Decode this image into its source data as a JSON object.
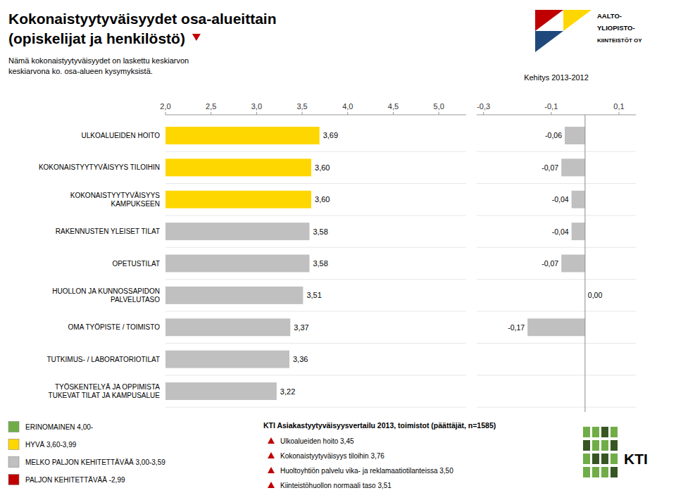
{
  "chart_data": [
    {
      "type": "bar",
      "orientation": "horizontal",
      "title": [
        "Kokonaistyytyväisyydet osa-alueittain",
        "(opiskelijat ja henkilöstö)"
      ],
      "subtitle": [
        "Nämä kokonaistyytyväisyydet on laskettu keskiarvon",
        "keskiarvona ko. osa-alueen kysymyksistä."
      ],
      "categories": [
        "ULKOALUEIDEN HOITO",
        "KOKONAISTYYTYVÄISYYS TILOIHIN",
        "KOKONAISTYYTYVÄISYYS\nKAMPUKSEEN",
        "RAKENNUSTEN YLEISET TILAT",
        "OPETUSTILAT",
        "HUOLLON JA KUNNOSSAPIDON\nPALVELUTASO",
        "OMA TYÖPISTE / TOIMISTO",
        "TUTKIMUS- / LABORATORIOTILAT",
        "TYÖSKENTELYÄ JA OPPIMISTA\nTUKEVAT TILAT JA KAMPUSALUE"
      ],
      "values": [
        3.69,
        3.6,
        3.6,
        3.58,
        3.58,
        3.51,
        3.37,
        3.36,
        3.22
      ],
      "value_labels": [
        "3,69",
        "3,60",
        "3,60",
        "3,58",
        "3,58",
        "3,51",
        "3,37",
        "3,36",
        "3,22"
      ],
      "data_labels": true,
      "colors": [
        "#FFD700",
        "#FFD700",
        "#FFD700",
        "#C0C0C0",
        "#C0C0C0",
        "#C0C0C0",
        "#C0C0C0",
        "#C0C0C0",
        "#C0C0C0"
      ],
      "xlim": [
        2.0,
        5.3
      ],
      "xticks": [
        {
          "value": 2.0,
          "label": "2,0"
        },
        {
          "value": 2.5,
          "label": "2,5"
        },
        {
          "value": 3.0,
          "label": "3,0"
        },
        {
          "value": 3.5,
          "label": "3,5"
        },
        {
          "value": 4.0,
          "label": "4,0"
        },
        {
          "value": 4.5,
          "label": "4,5"
        },
        {
          "value": 5.0,
          "label": "5,0"
        }
      ],
      "legend": "lower left",
      "legend_entries": [
        {
          "label": "ERINOMAINEN 4,00-",
          "color": "#70AD47"
        },
        {
          "label": "HYVÄ 3,60-3,99",
          "color": "#FFD700"
        },
        {
          "label": "MELKO PALJON KEHITETTÄVÄÄ 3,00-3,59",
          "color": "#C0C0C0"
        },
        {
          "label": "PALJON KEHITETTÄVÄÄ -2,99",
          "color": "#C00000"
        }
      ],
      "annotations": {
        "kti": {
          "title": "KTI Asiakastyytyväisyysvertailu 2013, toimistot (päättäjät, n=1585)",
          "items": [
            "Ulkoalueiden hoito 3,45",
            "Kokonaistyytyväisyys tiloihin 3,76",
            "Huoltoyhtiön palvelu vika- ja reklamaatiotilanteissa 3,50",
            "Kiinteistöhuollon normaali taso 3,51"
          ]
        },
        "logos": {
          "aalto": [
            "AALTO-",
            "YLIOPISTO-",
            "KIINTEISTÖT OY"
          ],
          "kti": "KTI"
        }
      }
    },
    {
      "type": "bar",
      "orientation": "horizontal",
      "title": "Kehitys 2013-2012",
      "categories": [
        "ULKOALUEIDEN HOITO",
        "KOKONAISTYYTYVÄISYYS TILOIHIN",
        "KOKONAISTYYTYVÄISYYS\nKAMPUKSEEN",
        "RAKENNUSTEN YLEISET TILAT",
        "OPETUSTILAT",
        "HUOLLON JA KUNNOSSAPIDON\nPALVELUTASO",
        "OMA TYÖPISTE / TOIMISTO",
        "TUTKIMUS- / LABORATORIOTILAT",
        "TYÖSKENTELYÄ JA OPPIMISTA\nTUKEVAT TILAT JA KAMPUSALUE"
      ],
      "tick_labels": "x",
      "values": [
        -0.06,
        -0.07,
        -0.04,
        -0.04,
        -0.07,
        0.0,
        -0.17,
        null,
        null
      ],
      "value_labels": [
        "-0,06",
        "-0,07",
        "-0,04",
        "-0,04",
        "-0,07",
        "0,00",
        "-0,17",
        null,
        null
      ],
      "data_labels": true,
      "color": "#C0C0C0",
      "xlim": [
        -0.32,
        0.15
      ],
      "xticks": [
        {
          "value": -0.3,
          "label": "-0,3"
        },
        {
          "value": -0.1,
          "label": "-0,1"
        },
        {
          "value": 0.1,
          "label": "0,1"
        }
      ]
    }
  ]
}
